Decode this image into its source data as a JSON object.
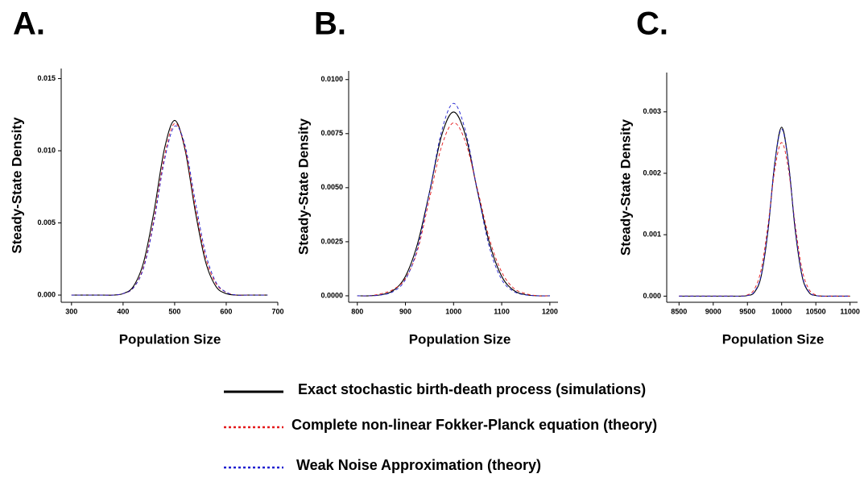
{
  "chart_data": [
    {
      "type": "line",
      "title": "A.",
      "xlabel": "Population Size",
      "ylabel": "Steady-State Density",
      "x": [
        300,
        320,
        340,
        360,
        380,
        400,
        420,
        440,
        460,
        480,
        500,
        520,
        540,
        560,
        580,
        600,
        620,
        640,
        660,
        680
      ],
      "series": [
        {
          "name": "Exact stochastic birth-death process (simulations)",
          "color": "#000000",
          "line_style": "solid",
          "values": [
            0,
            0,
            0,
            0,
            0,
            0.0001,
            0.0006,
            0.0023,
            0.0058,
            0.0101,
            0.0121,
            0.0101,
            0.0058,
            0.0023,
            0.0006,
            0.0001,
            0,
            0,
            0,
            0
          ]
        },
        {
          "name": "Complete non-linear Fokker-Planck equation (theory)",
          "color": "#e41a1c",
          "line_style": "dashed",
          "values": [
            0,
            0,
            0,
            0,
            0,
            0.0001,
            0.0005,
            0.002,
            0.0053,
            0.0096,
            0.0119,
            0.0102,
            0.0061,
            0.0026,
            0.0008,
            0.0002,
            0,
            0,
            0,
            0
          ]
        },
        {
          "name": "Weak Noise Approximation (theory)",
          "color": "#1f1fd0",
          "line_style": "dashed",
          "values": [
            0,
            0,
            0,
            0,
            0,
            0.0001,
            0.0005,
            0.0019,
            0.0051,
            0.0093,
            0.0117,
            0.0104,
            0.0065,
            0.0029,
            0.0009,
            0.0002,
            0,
            0,
            0,
            0
          ]
        }
      ],
      "xlim": [
        280,
        700
      ],
      "xticks": [
        300,
        400,
        500,
        600,
        700
      ],
      "ylim": [
        -0.0005,
        0.0157
      ],
      "yticks": [
        {
          "value": 0,
          "label": "0.000"
        },
        {
          "value": 0.005,
          "label": "0.005"
        },
        {
          "value": 0.01,
          "label": "0.010"
        },
        {
          "value": 0.015,
          "label": "0.015"
        }
      ]
    },
    {
      "type": "line",
      "title": "B.",
      "xlabel": "Population Size",
      "ylabel": "Steady-State Density",
      "x": [
        800,
        825,
        850,
        875,
        900,
        925,
        950,
        975,
        1000,
        1025,
        1050,
        1075,
        1100,
        1125,
        1150,
        1175,
        1200
      ],
      "series": [
        {
          "name": "Exact stochastic birth-death process (simulations)",
          "color": "#000000",
          "line_style": "solid",
          "values": [
            0,
            0,
            5e-05,
            0.00025,
            0.0009,
            0.0024,
            0.0048,
            0.0074,
            0.0085,
            0.0074,
            0.0048,
            0.0024,
            0.0009,
            0.00025,
            5e-05,
            0,
            0
          ]
        },
        {
          "name": "Complete non-linear Fokker-Planck equation (theory)",
          "color": "#e41a1c",
          "line_style": "dashed",
          "values": [
            0,
            0,
            0.0001,
            0.0003,
            0.0008,
            0.0021,
            0.0045,
            0.0069,
            0.008,
            0.0071,
            0.0049,
            0.0026,
            0.0011,
            0.00035,
            0.0001,
            0,
            0
          ]
        },
        {
          "name": "Weak Noise Approximation (theory)",
          "color": "#1f1fd0",
          "line_style": "dashed",
          "values": [
            0,
            0,
            4e-05,
            0.0002,
            0.00075,
            0.0022,
            0.0048,
            0.0076,
            0.0089,
            0.0076,
            0.0048,
            0.0022,
            0.00075,
            0.0002,
            4e-05,
            0,
            0
          ]
        }
      ],
      "xlim": [
        782,
        1217
      ],
      "xticks": [
        800,
        900,
        1000,
        1100,
        1200
      ],
      "ylim": [
        -0.0003,
        0.0104
      ],
      "yticks": [
        {
          "value": 0,
          "label": "0.0000"
        },
        {
          "value": 0.0025,
          "label": "0.0025"
        },
        {
          "value": 0.005,
          "label": "0.0050"
        },
        {
          "value": 0.0075,
          "label": "0.0075"
        },
        {
          "value": 0.01,
          "label": "0.0100"
        }
      ]
    },
    {
      "type": "line",
      "title": "C.",
      "xlabel": "Population Size",
      "ylabel": "Steady-State Density",
      "x": [
        8500,
        8600,
        8700,
        8800,
        8900,
        9000,
        9100,
        9200,
        9300,
        9400,
        9500,
        9600,
        9700,
        9800,
        9900,
        10000,
        10100,
        10200,
        10300,
        10400,
        10500,
        10600,
        10700,
        10800,
        10900,
        11000
      ],
      "series": [
        {
          "name": "Exact stochastic birth-death process (simulations)",
          "color": "#000000",
          "line_style": "solid",
          "values": [
            0,
            0,
            0,
            0,
            0,
            0,
            0,
            0,
            0,
            0,
            1e-05,
            6e-05,
            0.00032,
            0.00106,
            0.00217,
            0.00275,
            0.00217,
            0.00106,
            0.00032,
            6e-05,
            1e-05,
            0,
            0,
            0,
            0,
            0
          ]
        },
        {
          "name": "Complete non-linear Fokker-Planck equation (theory)",
          "color": "#e41a1c",
          "line_style": "dashed",
          "values": [
            0,
            0,
            0,
            0,
            0,
            0,
            0,
            0,
            0,
            0,
            2e-05,
            0.00011,
            0.00043,
            0.00115,
            0.00206,
            0.0025,
            0.00206,
            0.00115,
            0.00043,
            0.00011,
            2e-05,
            0,
            0,
            0,
            0,
            0
          ]
        },
        {
          "name": "Weak Noise Approximation (theory)",
          "color": "#1f1fd0",
          "line_style": "dashed",
          "values": [
            0,
            0,
            0,
            0,
            0,
            0,
            0,
            0,
            0,
            0,
            1e-05,
            7e-05,
            0.00034,
            0.00108,
            0.00216,
            0.00272,
            0.00216,
            0.00108,
            0.00034,
            7e-05,
            1e-05,
            0,
            0,
            0,
            0,
            0
          ]
        }
      ],
      "xlim": [
        8320,
        11110
      ],
      "xticks": [
        8500,
        9000,
        9500,
        10000,
        10500,
        11000
      ],
      "ylim": [
        -0.0001,
        0.00364
      ],
      "yticks": [
        {
          "value": 0,
          "label": "0.000"
        },
        {
          "value": 0.001,
          "label": "0.001"
        },
        {
          "value": 0.002,
          "label": "0.002"
        },
        {
          "value": 0.003,
          "label": "0.003"
        }
      ]
    }
  ]
}
